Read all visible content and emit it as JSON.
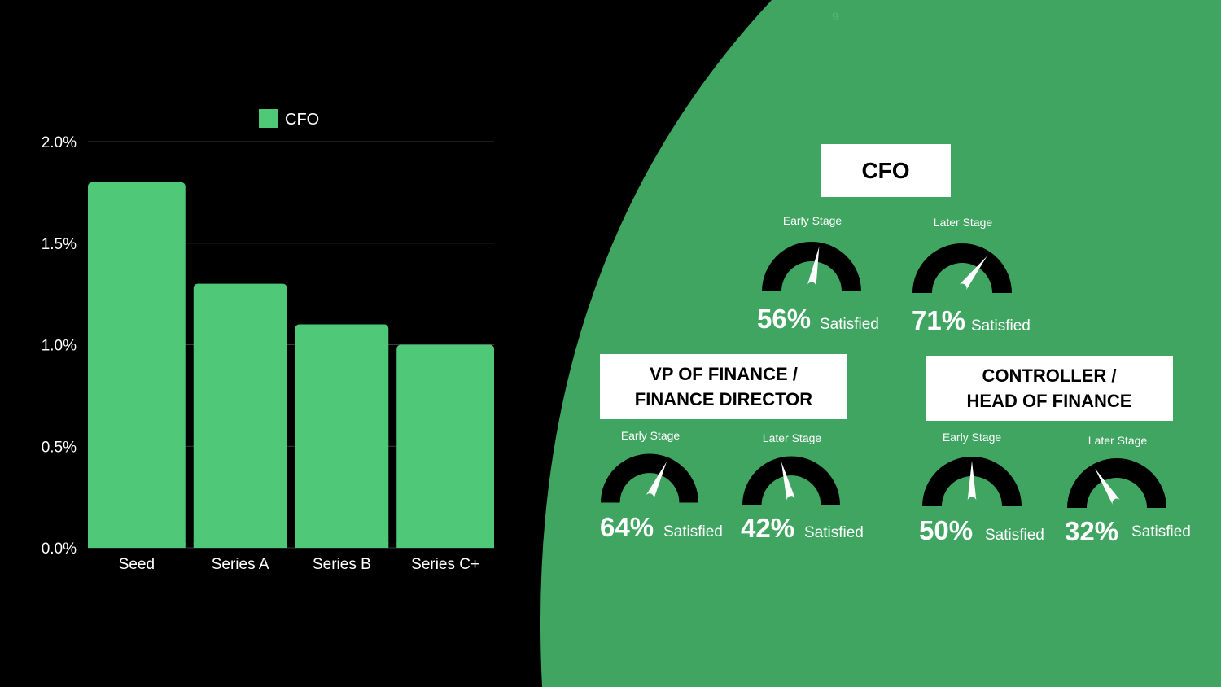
{
  "page_number": "9",
  "colors": {
    "green": "#41a562",
    "bar": "#4fc878",
    "needle": "#ffffff",
    "arc": "#000000"
  },
  "chart_data": {
    "type": "bar",
    "categories": [
      "Seed",
      "Series A",
      "Series B",
      "Series C+"
    ],
    "series": [
      {
        "name": "CFO",
        "values": [
          1.8,
          1.3,
          1.1,
          1.0
        ]
      }
    ],
    "ylim": [
      0,
      2.0
    ],
    "yticks": [
      "0.0%",
      "0.5%",
      "1.0%",
      "1.5%",
      "2.0%"
    ],
    "ytick_values": [
      0,
      0.5,
      1.0,
      1.5,
      2.0
    ],
    "legend": "top-center",
    "grid": true
  },
  "roles": {
    "cfo": {
      "title_lines": [
        "CFO"
      ],
      "early": {
        "stage": "Early Stage",
        "value": 56,
        "pct": "56%",
        "sat": "Satisfied"
      },
      "later": {
        "stage": "Later Stage",
        "value": 71,
        "pct": "71%",
        "sat": "Satisfied"
      }
    },
    "vp": {
      "title_lines": [
        "VP OF FINANCE /",
        "FINANCE DIRECTOR"
      ],
      "early": {
        "stage": "Early Stage",
        "value": 64,
        "pct": "64%",
        "sat": "Satisfied"
      },
      "later": {
        "stage": "Later Stage",
        "value": 42,
        "pct": "42%",
        "sat": "Satisfied"
      }
    },
    "controller": {
      "title_lines": [
        "CONTROLLER /",
        "HEAD OF FINANCE"
      ],
      "early": {
        "stage": "Early Stage",
        "value": 50,
        "pct": "50%",
        "sat": "Satisfied"
      },
      "later": {
        "stage": "Later Stage",
        "value": 32,
        "pct": "32%",
        "sat": "Satisfied"
      }
    }
  }
}
